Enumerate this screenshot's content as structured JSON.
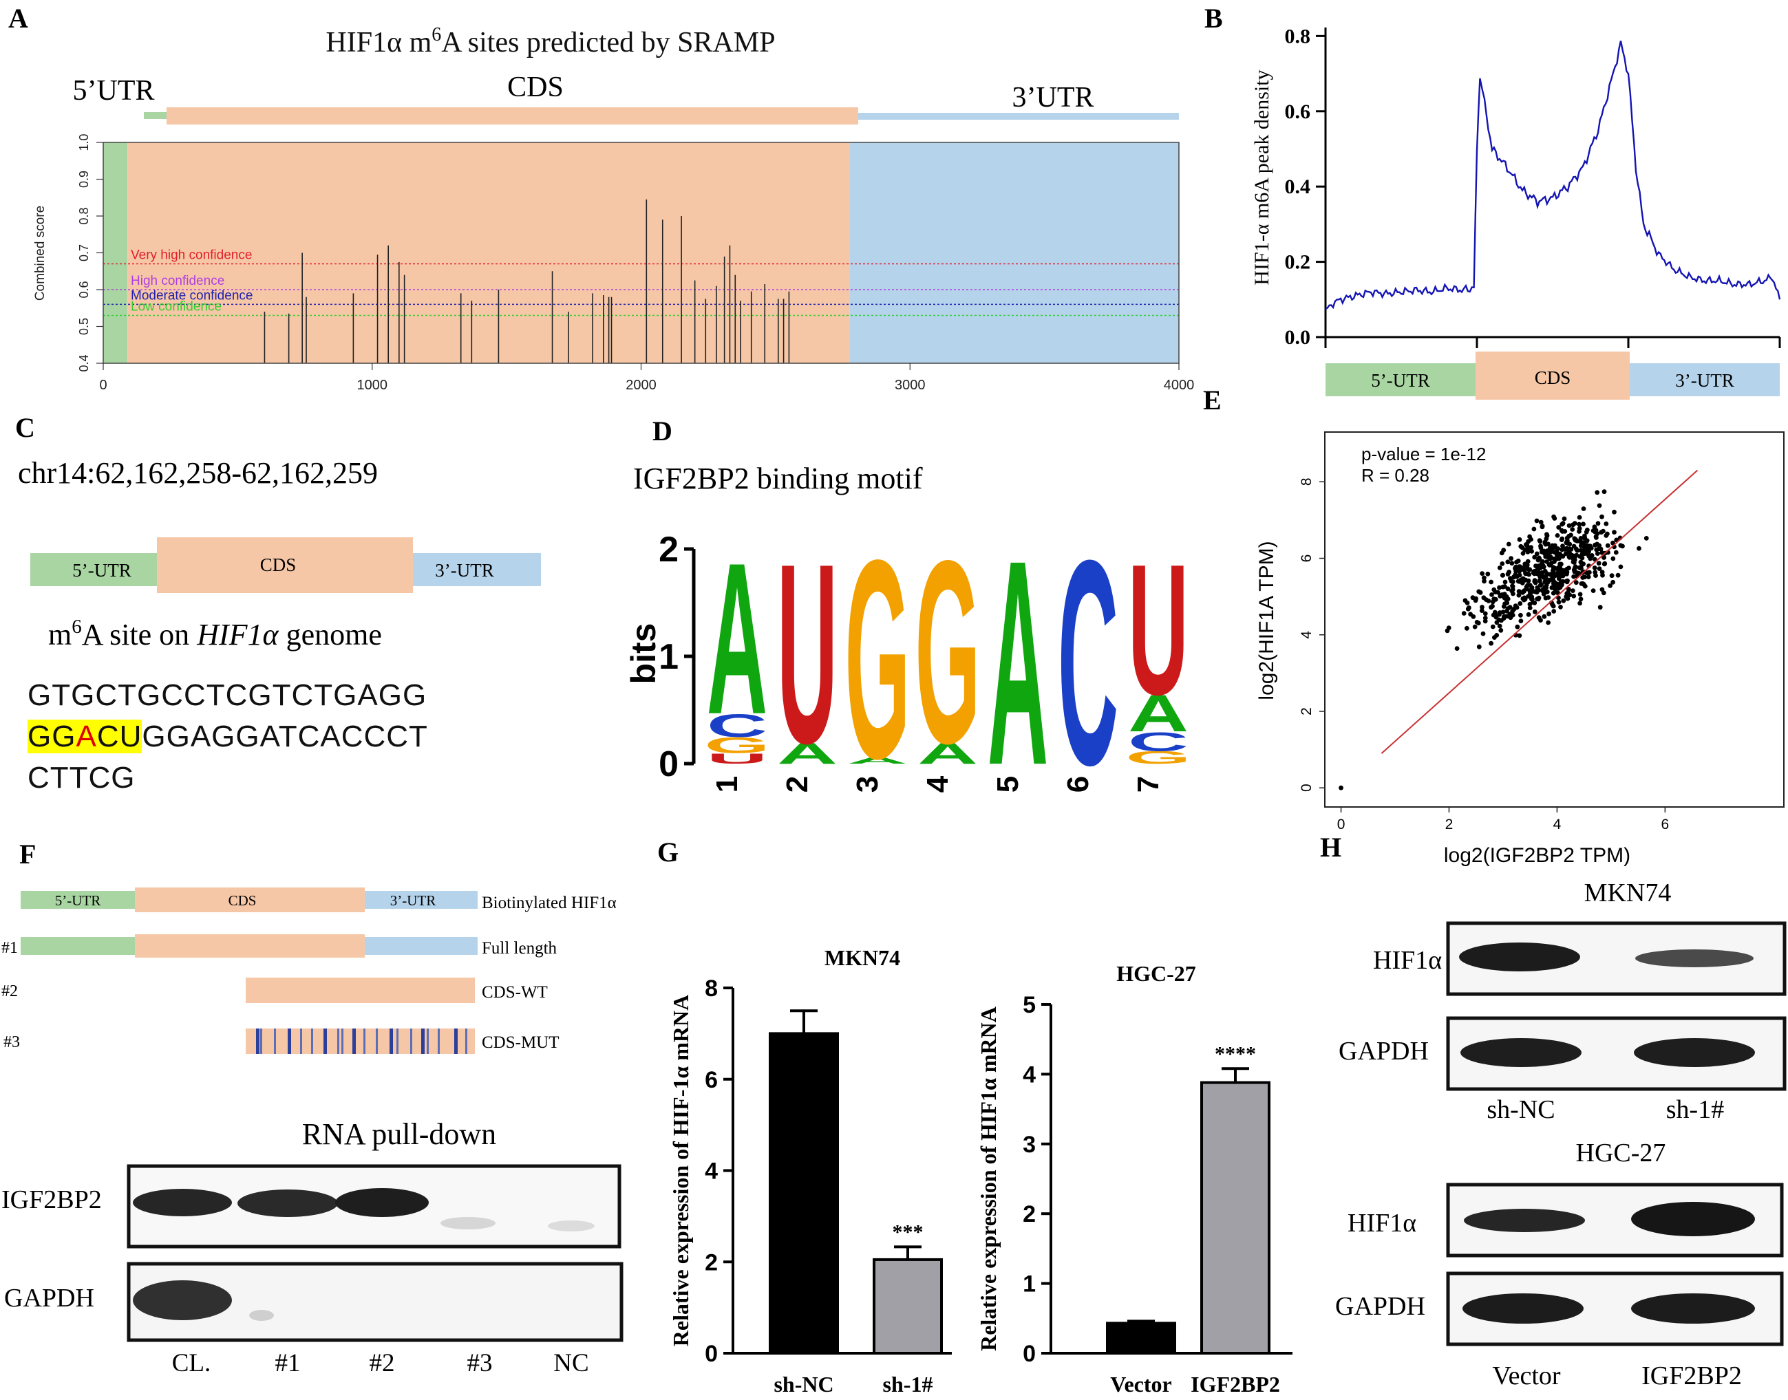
{
  "panels": {
    "A": {
      "letter": "A",
      "title_prefix": "HIF1α m",
      "title_sup": "6",
      "title_suffix": "A sites predicted by SRAMP",
      "regions": [
        "5’UTR",
        "CDS",
        "3’UTR"
      ],
      "colors": {
        "utr5": "#a8d5a2",
        "cds": "#f6c7a6",
        "utr3": "#b5d3ea"
      },
      "thresholds": [
        {
          "label": "Very high confidence",
          "value": 0.67,
          "color": "#e0202a"
        },
        {
          "label": "High confidence",
          "value": 0.6,
          "color": "#b040e0"
        },
        {
          "label": "Moderate confidence",
          "value": 0.56,
          "color": "#2020b0"
        },
        {
          "label": "Low confidence",
          "value": 0.53,
          "color": "#30d030"
        }
      ]
    },
    "B": {
      "letter": "B",
      "regions": [
        "5’-UTR",
        "CDS",
        "3’-UTR"
      ]
    },
    "C": {
      "letter": "C",
      "locus": "chr14:62,162,258-62,162,259",
      "regions": [
        "5’-UTR",
        "CDS",
        "3’-UTR"
      ],
      "site_m": "m",
      "site_sup": "6",
      "site_mid": "A site on ",
      "site_gene": "HIF1α",
      "site_end": " genome",
      "seq_line1": "GTGCTGCCTCGTCTGAGG",
      "seq_hl_a": "GG",
      "seq_hl_red": "A",
      "seq_hl_b": "CU",
      "seq_line2_rest": "GGAGGATCACCCT",
      "seq_line3": "CTTCG"
    },
    "D": {
      "letter": "D",
      "title": "IGF2BP2 binding motif",
      "ylabel": "bits"
    },
    "E": {
      "letter": "E",
      "pvalue": "p-value = 1e-12",
      "r": "R = 0.28"
    },
    "F": {
      "letter": "F",
      "construct_regions": [
        "5’-UTR",
        "CDS",
        "3’-UTR"
      ],
      "construct_labels": [
        "Biotinylated HIF1α",
        "Full length",
        "CDS-WT",
        "CDS-MUT"
      ],
      "row_ids": [
        "#1",
        "#2",
        "#3"
      ],
      "blot_title": "RNA pull-down",
      "blot_rows": [
        "IGF2BP2",
        "GAPDH"
      ],
      "lanes": [
        "CL.",
        "#1",
        "#2",
        "#3",
        "NC"
      ]
    },
    "G": {
      "letter": "G"
    },
    "H": {
      "letter": "H",
      "top_cell": "MKN74",
      "bottom_cell": "HGC-27",
      "rows": [
        "HIF1α",
        "GAPDH"
      ],
      "top_lanes": [
        "sh-NC",
        "sh-1#"
      ],
      "bottom_lanes": [
        "Vector",
        "IGF2BP2"
      ]
    }
  },
  "chart_data": [
    {
      "id": "A",
      "type": "bar",
      "title": "HIF1α m6A sites predicted by SRAMP",
      "xlabel": "",
      "ylabel": "Combined score",
      "xlim": [
        0,
        4000
      ],
      "ylim": [
        0.4,
        1.0
      ],
      "xticks": [
        0,
        1000,
        2000,
        3000,
        4000
      ],
      "xtick_labels": [
        "0",
        "1000",
        "2000",
        "3000",
        "4000"
      ],
      "yticks": [
        0.4,
        0.5,
        0.6,
        0.7,
        0.8,
        0.9,
        1.0
      ],
      "ytick_labels": [
        "0.4",
        "0.5",
        "0.6",
        "0.7",
        "0.8",
        "0.9",
        "1.0"
      ],
      "region_bounds": {
        "utr5": [
          0,
          90
        ],
        "cds": [
          90,
          2775
        ],
        "utr3": [
          2775,
          4000
        ]
      },
      "x": [
        600,
        690,
        740,
        755,
        930,
        1020,
        1060,
        1100,
        1120,
        1330,
        1370,
        1470,
        1670,
        1730,
        1820,
        1860,
        1880,
        1890,
        2020,
        2080,
        2150,
        2200,
        2240,
        2280,
        2310,
        2330,
        2350,
        2370,
        2410,
        2460,
        2510,
        2530,
        2550
      ],
      "values": [
        0.54,
        0.535,
        0.7,
        0.58,
        0.59,
        0.695,
        0.72,
        0.675,
        0.64,
        0.59,
        0.57,
        0.6,
        0.65,
        0.54,
        0.59,
        0.585,
        0.58,
        0.58,
        0.845,
        0.79,
        0.8,
        0.625,
        0.575,
        0.61,
        0.69,
        0.72,
        0.64,
        0.57,
        0.595,
        0.615,
        0.575,
        0.575,
        0.595
      ]
    },
    {
      "id": "B",
      "type": "line",
      "title": "",
      "xlabel": "",
      "ylabel": "HIF1-α m6A peak density",
      "xlim": [
        0,
        3
      ],
      "ylim": [
        0,
        0.85
      ],
      "yticks": [
        0.0,
        0.2,
        0.4,
        0.6,
        0.8
      ],
      "ytick_labels": [
        "0.0",
        "0.2",
        "0.4",
        "0.6",
        "0.8"
      ],
      "x": [
        0,
        0.05,
        0.1,
        0.2,
        0.3,
        0.4,
        0.5,
        0.6,
        0.7,
        0.8,
        0.9,
        0.98,
        1.0,
        1.02,
        1.05,
        1.1,
        1.2,
        1.3,
        1.4,
        1.5,
        1.6,
        1.7,
        1.8,
        1.9,
        1.95,
        2.0,
        2.05,
        2.1,
        2.2,
        2.3,
        2.4,
        2.5,
        2.6,
        2.7,
        2.8,
        2.9,
        2.95,
        3.0
      ],
      "y": [
        0.07,
        0.09,
        0.1,
        0.11,
        0.12,
        0.115,
        0.12,
        0.125,
        0.12,
        0.13,
        0.125,
        0.13,
        0.5,
        0.7,
        0.62,
        0.5,
        0.45,
        0.39,
        0.36,
        0.37,
        0.4,
        0.45,
        0.55,
        0.7,
        0.78,
        0.7,
        0.45,
        0.3,
        0.22,
        0.18,
        0.16,
        0.15,
        0.15,
        0.14,
        0.14,
        0.15,
        0.16,
        0.1
      ],
      "regions": [
        "5’-UTR",
        "CDS",
        "3’-UTR"
      ]
    },
    {
      "id": "D",
      "type": "other",
      "title": "IGF2BP2 binding motif",
      "xlabel": "",
      "ylabel": "bits",
      "ylim": [
        0,
        2
      ],
      "yticks": [
        0,
        1,
        2
      ],
      "positions": [
        "1",
        "2",
        "3",
        "4",
        "5",
        "6",
        "7"
      ],
      "letters": [
        [
          {
            "base": "A",
            "bits": 1.45
          },
          {
            "base": "C",
            "bits": 0.22
          },
          {
            "base": "G",
            "bits": 0.15
          },
          {
            "base": "U",
            "bits": 0.1
          }
        ],
        [
          {
            "base": "U",
            "bits": 1.72
          },
          {
            "base": "A",
            "bits": 0.2
          }
        ],
        [
          {
            "base": "G",
            "bits": 1.9
          },
          {
            "base": "A",
            "bits": 0.06
          }
        ],
        [
          {
            "base": "G",
            "bits": 1.75
          },
          {
            "base": "A",
            "bits": 0.2
          }
        ],
        [
          {
            "base": "A",
            "bits": 1.96
          }
        ],
        [
          {
            "base": "C",
            "bits": 1.96
          }
        ],
        [
          {
            "base": "U",
            "bits": 1.25
          },
          {
            "base": "A",
            "bits": 0.35
          },
          {
            "base": "C",
            "bits": 0.18
          },
          {
            "base": "G",
            "bits": 0.12
          }
        ]
      ],
      "base_colors": {
        "A": "#0fa60f",
        "U": "#cc1a1a",
        "G": "#f2a100",
        "C": "#1a40c8"
      }
    },
    {
      "id": "E",
      "type": "scatter",
      "title": "",
      "xlabel": "log2(IGF2BP2 TPM)",
      "ylabel": "log2(HIF1A TPM)",
      "xlim": [
        -0.3,
        8.2
      ],
      "ylim": [
        -0.5,
        9.3
      ],
      "xticks": [
        0,
        2,
        4,
        6
      ],
      "xtick_labels": [
        "0",
        "2",
        "4",
        "6"
      ],
      "yticks": [
        0,
        2,
        4,
        6,
        8
      ],
      "ytick_labels": [
        "0",
        "2",
        "4",
        "6",
        "8"
      ],
      "n_points": 600,
      "fit_line": {
        "x": [
          0.75,
          6.6
        ],
        "y": [
          0.9,
          8.3
        ]
      },
      "annotations": [
        "p-value = 1e-12",
        "R = 0.28"
      ]
    },
    {
      "id": "G1",
      "type": "bar",
      "title": "MKN74",
      "xlabel": "",
      "ylabel": "Relative expression of HIF-1α mRNA",
      "categories": [
        "sh-NC",
        "sh-1#"
      ],
      "values": [
        7.0,
        2.05
      ],
      "errors": [
        0.5,
        0.28
      ],
      "significance": [
        "",
        "***"
      ],
      "colors": [
        "#000000",
        "#a0a0a6"
      ],
      "ylim": [
        0,
        8
      ],
      "yticks": [
        0,
        2,
        4,
        6,
        8
      ]
    },
    {
      "id": "G2",
      "type": "bar",
      "title": "HGC-27",
      "xlabel": "",
      "ylabel": "Relative expression of HIF1α mRNA",
      "categories": [
        "Vector",
        "IGF2BP2"
      ],
      "values": [
        0.43,
        3.88
      ],
      "errors": [
        0.03,
        0.2
      ],
      "significance": [
        "",
        "****"
      ],
      "colors": [
        "#000000",
        "#a0a0a6"
      ],
      "ylim": [
        0,
        5
      ],
      "yticks": [
        0,
        1,
        2,
        3,
        4,
        5
      ]
    }
  ]
}
